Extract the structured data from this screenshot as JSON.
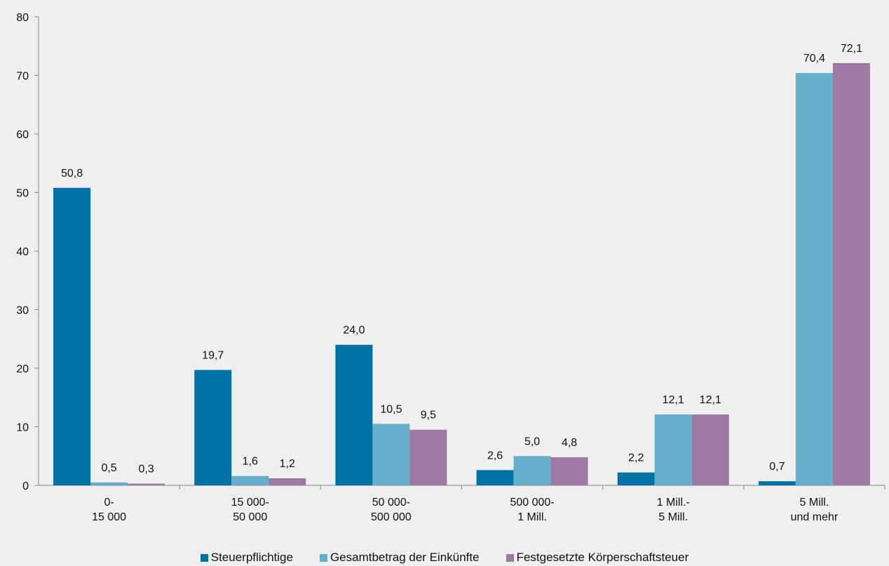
{
  "chart_data": {
    "type": "bar",
    "categories": [
      [
        "0-",
        "15 000"
      ],
      [
        "15 000-",
        "50 000"
      ],
      [
        "50 000-",
        "500 000"
      ],
      [
        "500 000-",
        "1 Mill."
      ],
      [
        "1 Mill.-",
        "5 Mill."
      ],
      [
        "5 Mill.",
        "und mehr"
      ]
    ],
    "series": [
      {
        "name": "Steuerpflichtige",
        "color": "#0072a6",
        "values": [
          50.8,
          19.7,
          24.0,
          2.6,
          2.2,
          0.7
        ],
        "labels": [
          "50,8",
          "19,7",
          "24,0",
          "2,6",
          "2,2",
          "0,7"
        ]
      },
      {
        "name": "Gesamtbetrag der Einkünfte",
        "color": "#66aecb",
        "values": [
          0.5,
          1.6,
          10.5,
          5.0,
          12.1,
          70.4
        ],
        "labels": [
          "0,5",
          "1,6",
          "10,5",
          "5,0",
          "12,1",
          "70,4"
        ]
      },
      {
        "name": "Festgesetzte Körperschaftsteuer",
        "color": "#9e7aa2",
        "values": [
          0.3,
          1.2,
          9.5,
          4.8,
          12.1,
          72.1
        ],
        "labels": [
          "0,3",
          "1,2",
          "9,5",
          "4,8",
          "12,1",
          "72,1"
        ]
      }
    ],
    "ylim": [
      0,
      80
    ],
    "yticks": [
      "0",
      "10",
      "20",
      "30",
      "40",
      "50",
      "60",
      "70",
      "80"
    ],
    "legend_position": "bottom",
    "grid": false
  }
}
